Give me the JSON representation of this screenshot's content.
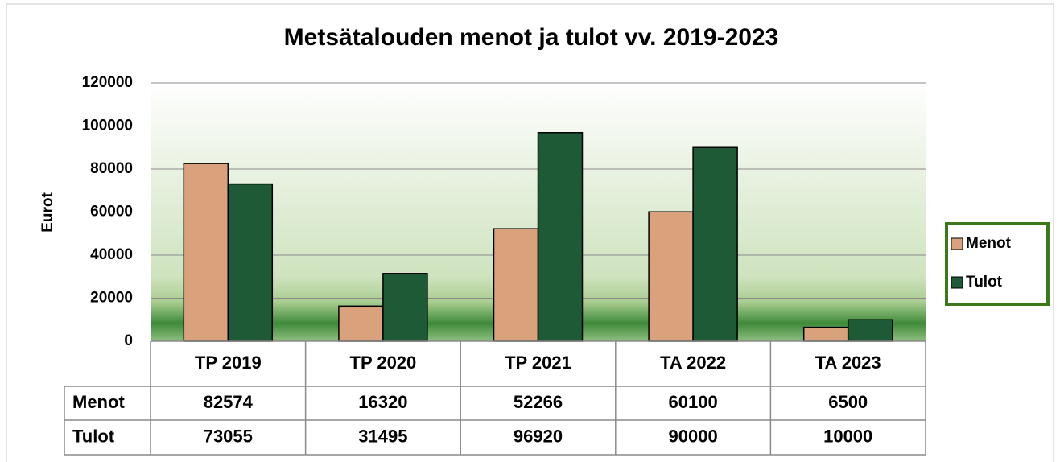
{
  "chart_data": {
    "type": "bar",
    "title": "Metsätalouden menot ja tulot vv. 2019-2023",
    "y_label": "Eurot",
    "categories": [
      "TP 2019",
      "TP 2020",
      "TP 2021",
      "TA 2022",
      "TA 2023"
    ],
    "series": [
      {
        "name": "Menot",
        "color": "#d9a27c",
        "values": [
          82574,
          16320,
          52266,
          60100,
          6500
        ]
      },
      {
        "name": "Tulot",
        "color": "#1f5a36",
        "values": [
          73055,
          31495,
          96920,
          90000,
          10000
        ]
      }
    ],
    "ylim": [
      0,
      120000
    ],
    "yticks": [
      0,
      20000,
      40000,
      60000,
      80000,
      100000,
      120000
    ],
    "grid": true,
    "legend": "right",
    "data_table": true
  }
}
